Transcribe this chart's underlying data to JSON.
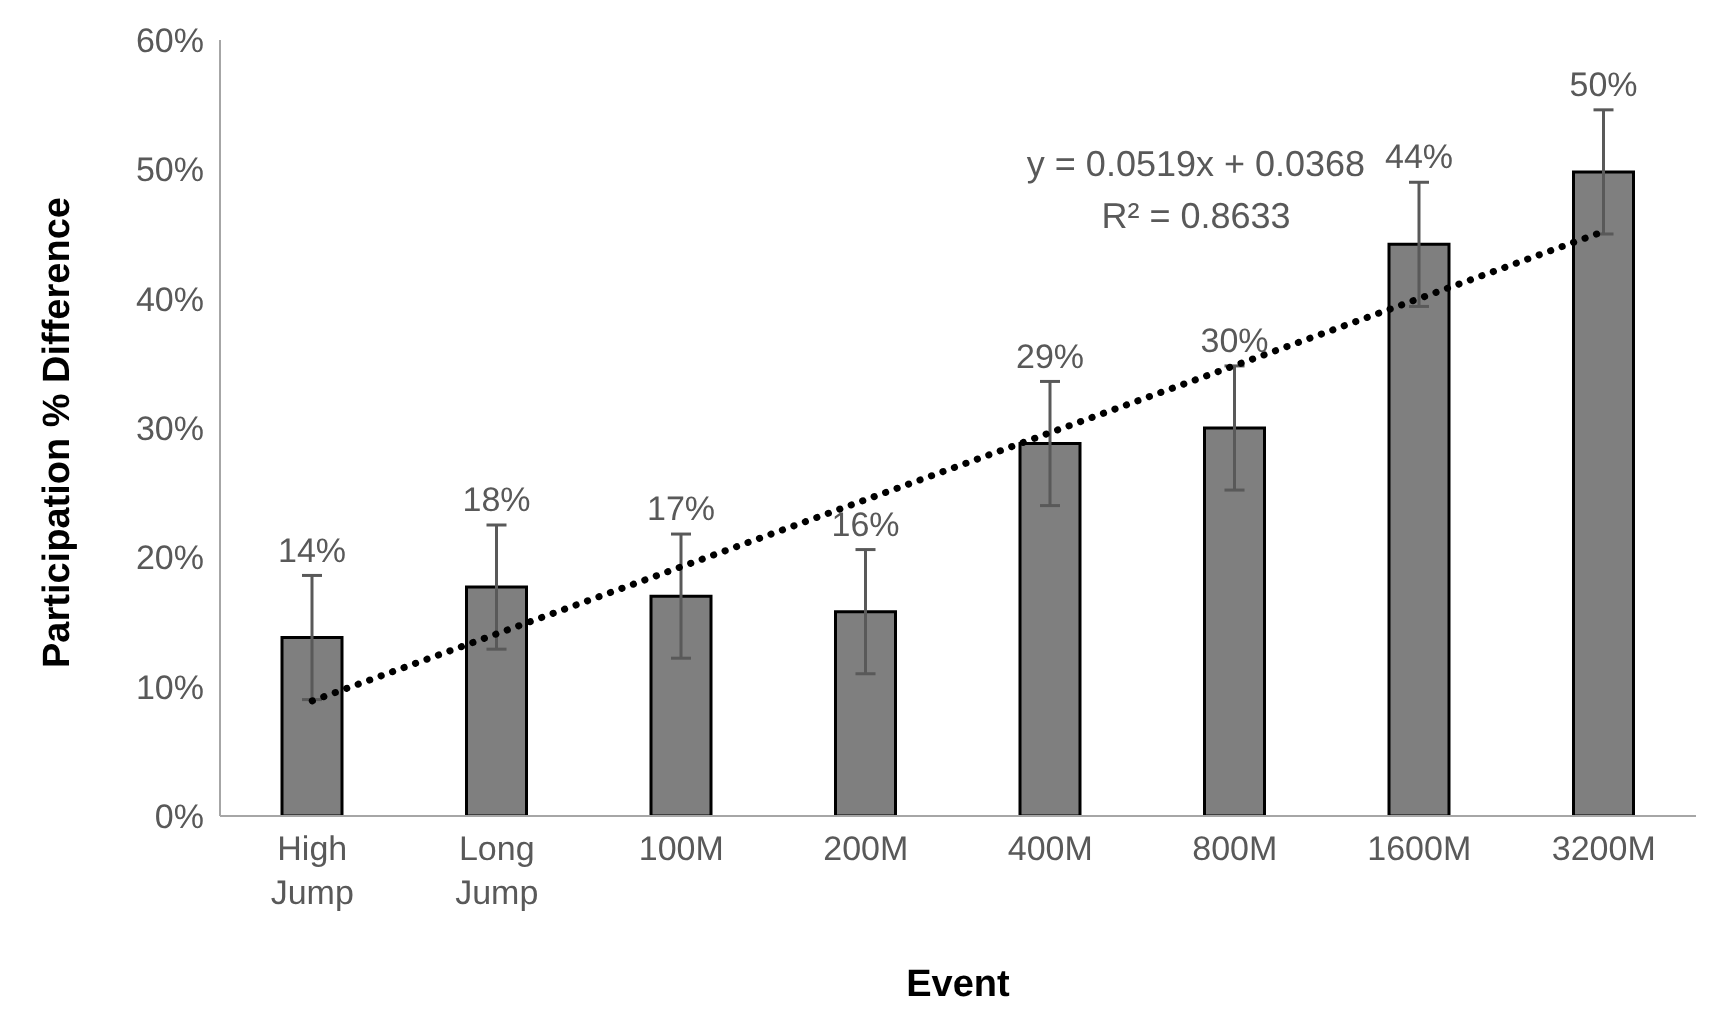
{
  "chart_data": {
    "type": "bar",
    "xlabel": "Event",
    "ylabel": "Participation % Difference",
    "categories": [
      "High Jump",
      "Long Jump",
      "100M",
      "200M",
      "400M",
      "800M",
      "1600M",
      "3200M"
    ],
    "series": [
      {
        "color": "#7f7f7f",
        "values": [
          13.8,
          17.7,
          17.0,
          15.8,
          28.8,
          30.0,
          44.2,
          49.8
        ],
        "errors": [
          4.8,
          4.8,
          4.8,
          4.8,
          4.8,
          4.8,
          4.8,
          4.8
        ],
        "value_labels": [
          "14%",
          "18%",
          "17%",
          "16%",
          "29%",
          "30%",
          "44%",
          "50%"
        ]
      },
      {
        "type": "line",
        "color": "#000000",
        "line_style": "dotted",
        "x": [
          "High Jump",
          "3200M"
        ],
        "values": [
          8.9,
          45.2
        ]
      }
    ],
    "ylim": [
      0,
      60
    ],
    "yticks": [
      {
        "value": 0,
        "label": "0%"
      },
      {
        "value": 10,
        "label": "10%"
      },
      {
        "value": 20,
        "label": "20%"
      },
      {
        "value": 30,
        "label": "30%"
      },
      {
        "value": 40,
        "label": "40%"
      },
      {
        "value": 50,
        "label": "50%"
      },
      {
        "value": 60,
        "label": "60%"
      }
    ],
    "annotations": [
      "y = 0.0519x + 0.0368",
      "R² = 0.8633"
    ],
    "grid": false,
    "legend": false
  }
}
